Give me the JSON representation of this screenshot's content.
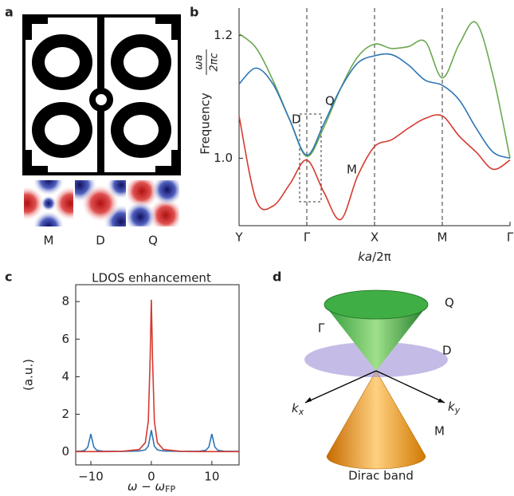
{
  "panel_labels": [
    "a",
    "b",
    "c",
    "d"
  ],
  "panel_a": {
    "mode_labels": [
      {
        "text": "M",
        "color": "#d6392f"
      },
      {
        "text": "D",
        "color": "#2e75b6"
      },
      {
        "text": "Q",
        "color": "#6aa84f"
      }
    ]
  },
  "chart_data": [
    {
      "type": "line",
      "smooth": true,
      "xgrid": true,
      "ylabel": "Frequency",
      "ylabel_fraction": {
        "numerator": "ωa",
        "denominator": "2πc"
      },
      "xlabel": {
        "italic": "ka",
        "rest": "/2π"
      },
      "x": [
        0,
        0.25,
        0.5,
        0.75,
        1,
        1.25,
        1.5,
        1.75,
        2,
        2.25,
        2.5,
        2.75,
        3,
        3.25,
        3.5,
        3.75,
        4
      ],
      "xlim": [
        0,
        4
      ],
      "xticks": [
        {
          "value": 0,
          "label": "Y"
        },
        {
          "value": 1,
          "label": "Γ"
        },
        {
          "value": 2,
          "label": "X"
        },
        {
          "value": 3,
          "label": "M"
        },
        {
          "value": 4,
          "label": "Γ"
        }
      ],
      "ylim": [
        0.89,
        1.245
      ],
      "yticks": [
        {
          "value": 1.0,
          "label": "1.0"
        },
        1.2
      ],
      "series": [
        {
          "name": "Q",
          "color": "#6aa84f",
          "values": [
            1.203,
            1.18,
            1.127,
            1.062,
            1.003,
            1.05,
            1.114,
            1.165,
            1.186,
            1.179,
            1.182,
            1.19,
            1.131,
            1.186,
            1.221,
            1.134,
            1.0
          ]
        },
        {
          "name": "D",
          "color": "#2e75b6",
          "values": [
            1.121,
            1.147,
            1.121,
            1.062,
            1.005,
            1.056,
            1.114,
            1.155,
            1.167,
            1.169,
            1.152,
            1.127,
            1.119,
            1.095,
            1.049,
            1.01,
            1.0
          ]
        },
        {
          "name": "M",
          "color": "#d6392f",
          "values": [
            1.069,
            0.932,
            0.922,
            0.958,
            0.997,
            0.945,
            0.9,
            0.971,
            1.019,
            1.03,
            1.049,
            1.065,
            1.069,
            1.036,
            1.01,
            0.982,
            0.997
          ]
        }
      ]
    },
    {
      "type": "line",
      "title": "LDOS enhancement",
      "ylabel": "(a.u.)",
      "xlabel": {
        "main": "ω − ω",
        "subscript": "FP"
      },
      "x": [
        -12.5,
        -11.5,
        -11,
        -10.5,
        -10.2,
        -10,
        -9.8,
        -9.5,
        -9,
        -8,
        -5,
        -2,
        -1,
        -0.5,
        -0.2,
        0,
        0.2,
        0.5,
        1,
        2,
        5,
        8,
        9,
        9.5,
        9.8,
        10,
        10.2,
        10.5,
        11,
        12,
        14.5
      ],
      "xlim": [
        -12.5,
        14.5
      ],
      "xticks": [
        {
          "value": -10,
          "label": "−10"
        },
        0,
        10
      ],
      "ylim": [
        -0.7,
        8.9
      ],
      "yticks": [
        0,
        2,
        4,
        6,
        8
      ],
      "series": [
        {
          "color": "#2e75b6",
          "values": [
            0.02,
            0.04,
            0.08,
            0.25,
            0.66,
            0.95,
            0.66,
            0.25,
            0.08,
            0.03,
            0.02,
            0.04,
            0.1,
            0.3,
            0.8,
            1.15,
            0.8,
            0.3,
            0.1,
            0.04,
            0.02,
            0.03,
            0.08,
            0.25,
            0.66,
            0.95,
            0.66,
            0.25,
            0.08,
            0.03,
            0.02
          ]
        },
        {
          "color": "#d6392f",
          "values": [
            0.01,
            0.01,
            0.01,
            0.01,
            0.01,
            0.01,
            0.01,
            0.01,
            0.01,
            0.01,
            0.02,
            0.12,
            0.48,
            1.62,
            4.94,
            8.1,
            4.94,
            1.62,
            0.48,
            0.12,
            0.02,
            0.01,
            0.01,
            0.01,
            0.01,
            0.01,
            0.01,
            0.01,
            0.01,
            0.01,
            0.01
          ]
        }
      ]
    }
  ],
  "panel_d": {
    "title": "Dirac band",
    "point": "Γ",
    "bands": [
      {
        "text": "Q",
        "color": "#6aa84f"
      },
      {
        "text": "D",
        "color": "#2e75b6"
      },
      {
        "text": "M",
        "color": "#d6392f"
      }
    ],
    "kx": {
      "main": "k",
      "sub": "x"
    },
    "ky": {
      "main": "k",
      "sub": "y"
    }
  }
}
